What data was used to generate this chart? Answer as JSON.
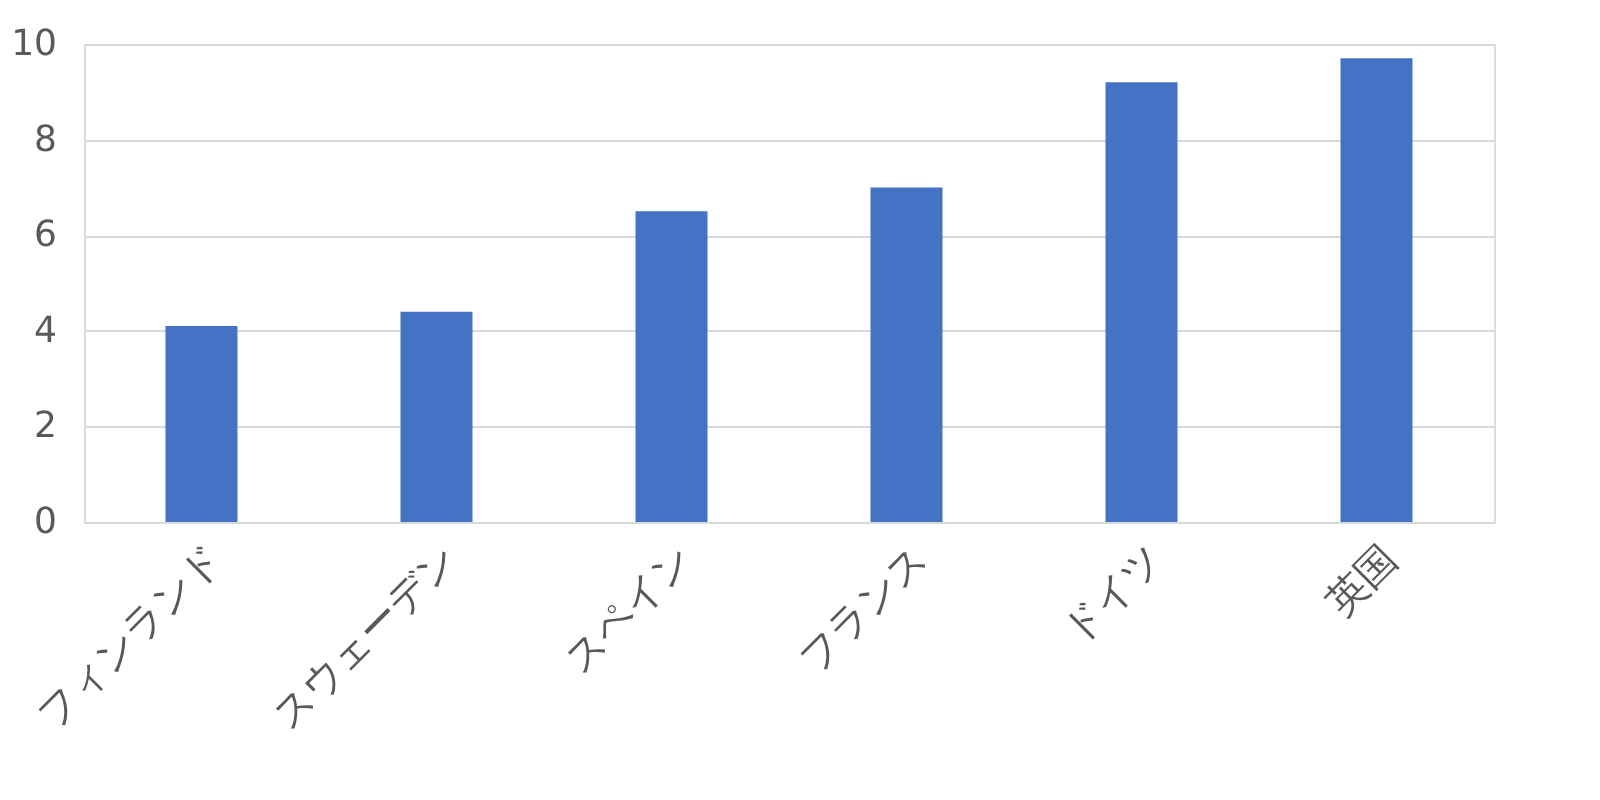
{
  "chart_data": {
    "type": "bar",
    "categories": [
      "フィンランド",
      "スウェーデン",
      "スペイン",
      "フランス",
      "ドイツ",
      "英国"
    ],
    "values": [
      4.1,
      4.4,
      6.5,
      7.0,
      9.2,
      9.7
    ],
    "color": "#4472c4",
    "ylim": [
      0,
      10
    ],
    "yticks": [
      0,
      2,
      4,
      6,
      8,
      10
    ],
    "grid": "y"
  }
}
